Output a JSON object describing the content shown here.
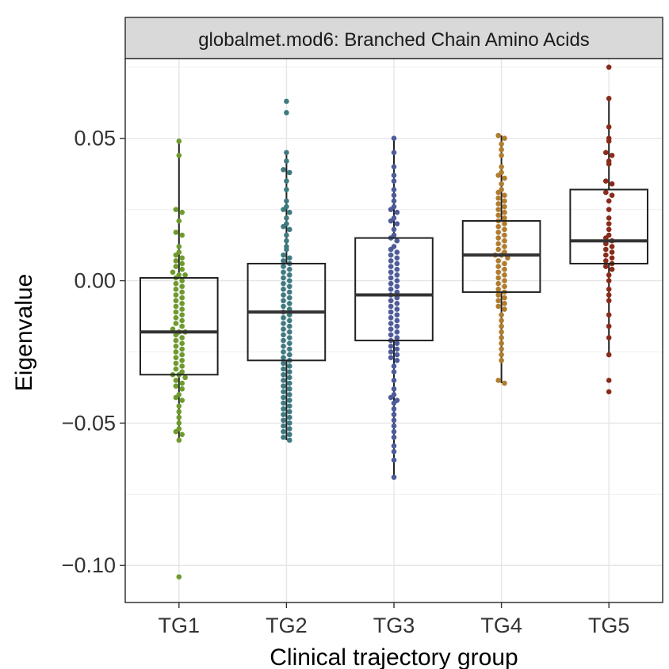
{
  "chart_data": {
    "type": "box",
    "title": "globalmet.mod6: Branched Chain Amino Acids",
    "xlabel": "Clinical trajectory group",
    "ylabel": "Eigenvalue",
    "categories": [
      "TG1",
      "TG2",
      "TG3",
      "TG4",
      "TG5"
    ],
    "ylim": [
      -0.113,
      0.078
    ],
    "yticks": [
      {
        "value": 0.05,
        "label": "0.05"
      },
      {
        "value": 0.0,
        "label": "0.00"
      },
      {
        "value": -0.05,
        "label": "−0.05"
      },
      {
        "value": -0.1,
        "label": "−0.10"
      }
    ],
    "grid": true,
    "legend": "none",
    "series": [
      {
        "category": "TG1",
        "color": "#6e9a2e",
        "whisker_low": -0.056,
        "q1": -0.033,
        "median": -0.018,
        "q3": 0.001,
        "whisker_high": 0.049,
        "points": [
          0.049,
          0.044,
          0.025,
          0.024,
          0.021,
          0.017,
          0.016,
          0.012,
          0.01,
          0.009,
          0.008,
          0.007,
          0.006,
          0.005,
          0.004,
          0.003,
          0.002,
          0.002,
          0.001,
          0.0,
          -0.001,
          -0.002,
          -0.003,
          -0.004,
          -0.005,
          -0.006,
          -0.007,
          -0.008,
          -0.009,
          -0.01,
          -0.011,
          -0.012,
          -0.013,
          -0.014,
          -0.015,
          -0.016,
          -0.017,
          -0.018,
          -0.018,
          -0.019,
          -0.02,
          -0.021,
          -0.022,
          -0.023,
          -0.024,
          -0.025,
          -0.026,
          -0.027,
          -0.028,
          -0.029,
          -0.03,
          -0.031,
          -0.032,
          -0.033,
          -0.033,
          -0.034,
          -0.035,
          -0.036,
          -0.037,
          -0.038,
          -0.04,
          -0.041,
          -0.042,
          -0.044,
          -0.046,
          -0.048,
          -0.05,
          -0.052,
          -0.053,
          -0.054,
          -0.056,
          -0.104
        ]
      },
      {
        "category": "TG2",
        "color": "#3f7a80",
        "whisker_low": -0.056,
        "q1": -0.028,
        "median": -0.011,
        "q3": 0.006,
        "whisker_high": 0.045,
        "points": [
          0.063,
          0.059,
          0.045,
          0.042,
          0.039,
          0.038,
          0.035,
          0.032,
          0.028,
          0.026,
          0.025,
          0.024,
          0.022,
          0.02,
          0.019,
          0.018,
          0.016,
          0.014,
          0.012,
          0.011,
          0.009,
          0.008,
          0.007,
          0.006,
          0.005,
          0.004,
          0.003,
          0.002,
          0.001,
          0.0,
          -0.001,
          -0.002,
          -0.003,
          -0.004,
          -0.005,
          -0.006,
          -0.007,
          -0.008,
          -0.009,
          -0.01,
          -0.011,
          -0.012,
          -0.013,
          -0.014,
          -0.015,
          -0.016,
          -0.017,
          -0.018,
          -0.019,
          -0.02,
          -0.021,
          -0.022,
          -0.023,
          -0.024,
          -0.025,
          -0.026,
          -0.027,
          -0.028,
          -0.029,
          -0.03,
          -0.031,
          -0.032,
          -0.033,
          -0.034,
          -0.035,
          -0.036,
          -0.037,
          -0.038,
          -0.039,
          -0.04,
          -0.041,
          -0.042,
          -0.043,
          -0.044,
          -0.045,
          -0.046,
          -0.047,
          -0.048,
          -0.049,
          -0.05,
          -0.051,
          -0.052,
          -0.053,
          -0.054,
          -0.055,
          -0.056
        ]
      },
      {
        "category": "TG3",
        "color": "#4f5c9a",
        "whisker_low": -0.069,
        "q1": -0.021,
        "median": -0.005,
        "q3": 0.015,
        "whisker_high": 0.05,
        "points": [
          0.05,
          0.045,
          0.04,
          0.037,
          0.035,
          0.032,
          0.03,
          0.028,
          0.026,
          0.025,
          0.024,
          0.022,
          0.021,
          0.02,
          0.018,
          0.016,
          0.015,
          0.014,
          0.012,
          0.011,
          0.01,
          0.009,
          0.008,
          0.007,
          0.006,
          0.005,
          0.004,
          0.003,
          0.002,
          0.001,
          0.0,
          -0.001,
          -0.002,
          -0.003,
          -0.004,
          -0.005,
          -0.006,
          -0.007,
          -0.008,
          -0.009,
          -0.01,
          -0.011,
          -0.012,
          -0.013,
          -0.014,
          -0.015,
          -0.016,
          -0.017,
          -0.018,
          -0.019,
          -0.02,
          -0.021,
          -0.022,
          -0.023,
          -0.024,
          -0.025,
          -0.026,
          -0.027,
          -0.028,
          -0.03,
          -0.032,
          -0.035,
          -0.038,
          -0.04,
          -0.041,
          -0.042,
          -0.043,
          -0.045,
          -0.047,
          -0.049,
          -0.051,
          -0.053,
          -0.055,
          -0.058,
          -0.06,
          -0.063,
          -0.069
        ]
      },
      {
        "category": "TG4",
        "color": "#b07c2f",
        "whisker_low": -0.036,
        "q1": -0.004,
        "median": 0.009,
        "q3": 0.021,
        "whisker_high": 0.051,
        "points": [
          0.051,
          0.05,
          0.048,
          0.046,
          0.044,
          0.04,
          0.038,
          0.037,
          0.036,
          0.034,
          0.032,
          0.031,
          0.03,
          0.029,
          0.028,
          0.027,
          0.026,
          0.025,
          0.024,
          0.023,
          0.022,
          0.021,
          0.02,
          0.019,
          0.018,
          0.017,
          0.016,
          0.015,
          0.014,
          0.013,
          0.012,
          0.011,
          0.01,
          0.009,
          0.009,
          0.008,
          0.007,
          0.006,
          0.005,
          0.004,
          0.003,
          0.002,
          0.001,
          0.0,
          -0.001,
          -0.002,
          -0.003,
          -0.004,
          -0.005,
          -0.006,
          -0.007,
          -0.008,
          -0.009,
          -0.01,
          -0.012,
          -0.014,
          -0.016,
          -0.018,
          -0.02,
          -0.022,
          -0.024,
          -0.026,
          -0.028,
          -0.035,
          -0.036
        ]
      },
      {
        "category": "TG5",
        "color": "#8a2b1a",
        "whisker_low": -0.026,
        "q1": 0.006,
        "median": 0.014,
        "q3": 0.032,
        "whisker_high": 0.064,
        "points": [
          0.075,
          0.064,
          0.054,
          0.05,
          0.049,
          0.045,
          0.044,
          0.042,
          0.041,
          0.035,
          0.034,
          0.031,
          0.03,
          0.028,
          0.025,
          0.022,
          0.02,
          0.018,
          0.016,
          0.015,
          0.014,
          0.013,
          0.012,
          0.011,
          0.01,
          0.009,
          0.008,
          0.007,
          0.006,
          0.005,
          0.004,
          0.002,
          0.0,
          -0.003,
          -0.005,
          -0.007,
          -0.012,
          -0.016,
          -0.02,
          -0.026,
          -0.035,
          -0.039
        ]
      }
    ]
  }
}
